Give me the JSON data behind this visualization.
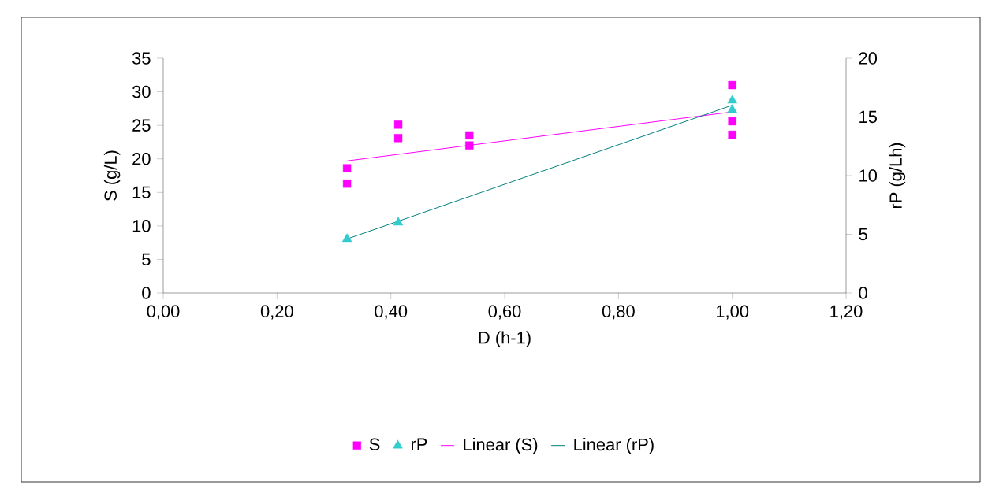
{
  "chart_data": {
    "type": "scatter",
    "xlabel": "D (h-1)",
    "ylabel": "S (g/L)",
    "y2label": "rP (g/Lh)",
    "xlim": [
      0,
      1.2
    ],
    "xticks": [
      {
        "value": 0,
        "label": "0,00"
      },
      {
        "value": 0.2,
        "label": "0,20"
      },
      {
        "value": 0.4,
        "label": "0,40"
      },
      {
        "value": 0.6,
        "label": "0,60"
      },
      {
        "value": 0.8,
        "label": "0,80"
      },
      {
        "value": 1.0,
        "label": "1,00"
      },
      {
        "value": 1.2,
        "label": "1,20"
      }
    ],
    "ylim": [
      0,
      35
    ],
    "yticks": [
      0,
      5,
      10,
      15,
      20,
      25,
      30,
      35
    ],
    "y2lim": [
      0,
      20
    ],
    "y2ticks": [
      0,
      5,
      10,
      15,
      20
    ],
    "legend": "bottom",
    "grid": false,
    "series": [
      {
        "name": "S",
        "marker": "square",
        "color": "#ff00ff",
        "x": [
          0.323,
          0.323,
          0.413,
          0.413,
          0.538,
          0.538,
          1.0,
          1.0,
          1.0
        ],
        "values": [
          18.6,
          16.3,
          25.1,
          23.1,
          23.5,
          22,
          31,
          25.6,
          23.6
        ]
      },
      {
        "name": "rP",
        "marker": "triangle",
        "color": "#33cccc",
        "axis": "y2",
        "x": [
          0.323,
          0.413,
          1.0,
          1.0
        ],
        "values": [
          4.6,
          6.0,
          16.4,
          15.6
        ]
      },
      {
        "name": "Linear (S)",
        "type": "line",
        "marker": "none",
        "color": "#ff00ff",
        "x": [
          0.323,
          1.0
        ],
        "values": [
          19.7,
          27.0
        ]
      },
      {
        "name": "Linear (rP)",
        "type": "line",
        "marker": "none",
        "color": "#008080",
        "axis": "y2",
        "x": [
          0.323,
          1.0
        ],
        "values": [
          4.6,
          16.0
        ]
      }
    ]
  }
}
